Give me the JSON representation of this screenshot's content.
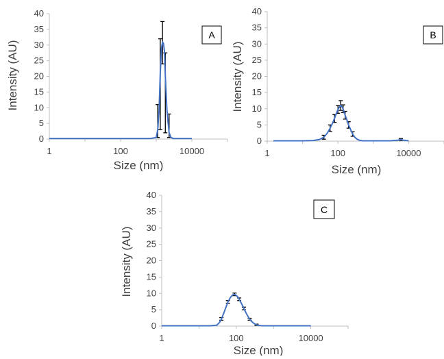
{
  "figure": {
    "colors": {
      "line": "#4472c4",
      "error_bar": "#000000",
      "axis": "#bfbfbf",
      "text": "#404040"
    }
  },
  "chart_data": [
    {
      "type": "line",
      "panel_label": "A",
      "xlabel": "Size (nm)",
      "ylabel": "Intensity (AU)",
      "xscale": "log",
      "xticks": [
        1,
        100,
        10000
      ],
      "xtick_labels": [
        "1",
        "100",
        "10000"
      ],
      "ylim": [
        0,
        40
      ],
      "yticks": [
        0,
        5,
        10,
        15,
        20,
        25,
        30,
        35,
        40
      ],
      "series": [
        {
          "x": [
            1,
            2,
            5,
            10,
            30,
            100,
            300,
            700,
            1000,
            1100,
            1200,
            1300,
            1400,
            1500,
            1600,
            1700,
            1800,
            2000,
            2300,
            2600,
            3000,
            5000,
            10000
          ],
          "y": [
            0.2,
            0.2,
            0.2,
            0.2,
            0.2,
            0.2,
            0.2,
            0.2,
            0.5,
            3,
            9,
            21,
            29,
            31,
            30.5,
            28,
            20,
            9,
            2,
            0.5,
            0.2,
            0.2,
            0.2
          ],
          "error_bars": [
            {
              "x": 1100,
              "low": 0.5,
              "high": 11
            },
            {
              "x": 1300,
              "low": 3,
              "high": 32
            },
            {
              "x": 1500,
              "low": 24,
              "high": 37.5
            },
            {
              "x": 1800,
              "low": 2,
              "high": 27.5
            },
            {
              "x": 2300,
              "low": 0.5,
              "high": 8
            }
          ]
        }
      ]
    },
    {
      "type": "line",
      "panel_label": "B",
      "xlabel": "Size (nm)",
      "ylabel": "Intensity (AU)",
      "xscale": "log",
      "xticks": [
        1,
        100,
        10000
      ],
      "xtick_labels": [
        "1",
        "100",
        "10000"
      ],
      "ylim": [
        0,
        40
      ],
      "yticks": [
        0,
        5,
        10,
        15,
        20,
        25,
        30,
        35,
        40
      ],
      "series": [
        {
          "x": [
            1.5,
            5,
            10,
            20,
            30,
            40,
            50,
            60,
            70,
            80,
            90,
            100,
            110,
            120,
            130,
            140,
            150,
            160,
            180,
            200,
            230,
            260,
            300,
            350,
            400,
            500,
            700,
            1000,
            2000,
            3000,
            5000,
            6000,
            7000,
            10000
          ],
          "y": [
            0.1,
            0.1,
            0.1,
            0.2,
            0.5,
            1.2,
            2.5,
            4,
            5.5,
            7,
            8.5,
            9.8,
            10.5,
            11,
            10.6,
            10,
            9,
            8,
            6.5,
            5,
            3.5,
            2.2,
            1.2,
            0.6,
            0.3,
            0.1,
            0.1,
            0.1,
            0.1,
            0.1,
            0.3,
            0.5,
            0.3,
            0.1
          ],
          "error_bars": [
            {
              "x": 40,
              "low": 0.6,
              "high": 1.8
            },
            {
              "x": 60,
              "low": 3,
              "high": 5
            },
            {
              "x": 80,
              "low": 5.8,
              "high": 8.2
            },
            {
              "x": 100,
              "low": 8.6,
              "high": 11
            },
            {
              "x": 120,
              "low": 9.5,
              "high": 12.5
            },
            {
              "x": 140,
              "low": 8.8,
              "high": 11.2
            },
            {
              "x": 160,
              "low": 6.8,
              "high": 9.2
            },
            {
              "x": 200,
              "low": 4,
              "high": 6
            },
            {
              "x": 260,
              "low": 1.5,
              "high": 2.9
            },
            {
              "x": 6000,
              "low": 0.2,
              "high": 0.8
            }
          ]
        }
      ]
    },
    {
      "type": "line",
      "panel_label": "C",
      "xlabel": "Size (nm)",
      "ylabel": "Intensity (AU)",
      "xscale": "log",
      "xticks": [
        1,
        100,
        10000
      ],
      "xtick_labels": [
        "1",
        "100",
        "10000"
      ],
      "ylim": [
        0,
        40
      ],
      "yticks": [
        0,
        5,
        10,
        15,
        20,
        25,
        30,
        35,
        40
      ],
      "series": [
        {
          "x": [
            1,
            5,
            10,
            20,
            30,
            35,
            40,
            45,
            50,
            55,
            60,
            70,
            80,
            90,
            100,
            110,
            120,
            140,
            160,
            180,
            200,
            230,
            260,
            300,
            350,
            400,
            500,
            700,
            1000,
            2000,
            5000,
            10000
          ],
          "y": [
            0.1,
            0.1,
            0.1,
            0.1,
            0.3,
            1,
            2.2,
            3.6,
            5,
            6.3,
            7.4,
            8.8,
            9.5,
            9.7,
            9.4,
            8.9,
            8.2,
            6.8,
            5.4,
            4.2,
            3.2,
            2.1,
            1.4,
            0.8,
            0.4,
            0.2,
            0.1,
            0.1,
            0.1,
            0.1,
            0.1,
            0.1
          ],
          "error_bars": [
            {
              "x": 40,
              "low": 1.8,
              "high": 2.6
            },
            {
              "x": 60,
              "low": 7,
              "high": 7.8
            },
            {
              "x": 90,
              "low": 9.3,
              "high": 10.1
            },
            {
              "x": 120,
              "low": 7.8,
              "high": 8.6
            },
            {
              "x": 160,
              "low": 5,
              "high": 5.8
            },
            {
              "x": 230,
              "low": 1.8,
              "high": 2.4
            },
            {
              "x": 350,
              "low": 0.2,
              "high": 0.6
            }
          ]
        }
      ]
    }
  ]
}
